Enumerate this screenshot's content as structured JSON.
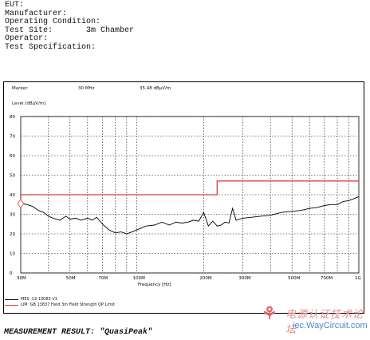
{
  "header": {
    "rows": [
      {
        "label": "EUT:",
        "value": ""
      },
      {
        "label": "Manufacturer:",
        "value": ""
      },
      {
        "label": "Operating Condition:",
        "value": ""
      },
      {
        "label": "Test Site:",
        "value": "3m Chamber"
      },
      {
        "label": "Operator:",
        "value": ""
      },
      {
        "label": "Test Specification:",
        "value": ""
      }
    ]
  },
  "marker": {
    "label": "Marker:",
    "freq": "30 MHz",
    "level": "35.48 dBµV/m"
  },
  "result": "MEASUREMENT RESULT: \"QuasiPeak\"",
  "watermark": {
    "cn": "电源认证技术论坛",
    "url": "iec.WayCircuit.com"
  },
  "legend": [
    {
      "code": "MES",
      "text": "13-13083 V1",
      "color": "#000000"
    },
    {
      "code": "LIM",
      "text": "GB 13837 Field 3m    Field Strength QP Limit",
      "color": "#d9413b"
    }
  ],
  "chart_data": {
    "type": "line",
    "ylabel": "Level [dBµV/m]",
    "xlabel": "Frequency [Hz]",
    "ylim": [
      0,
      80
    ],
    "xlim_mhz": [
      30,
      1000
    ],
    "x_scale": "log",
    "yticks": [
      0,
      10,
      20,
      30,
      40,
      50,
      60,
      70,
      80
    ],
    "xtick_labels": [
      "30M",
      "50M",
      "70M",
      "100M",
      "200M",
      "300M",
      "500M",
      "700M",
      "1G"
    ],
    "xtick_values_mhz": [
      30,
      50,
      70,
      100,
      200,
      300,
      500,
      700,
      1000
    ],
    "grid": true,
    "series": [
      {
        "name": "MES 13-13083 V1",
        "color": "#000000",
        "x_mhz": [
          30,
          32,
          34,
          36,
          38,
          40,
          42,
          45,
          48,
          50,
          53,
          56,
          60,
          63,
          66,
          70,
          75,
          80,
          85,
          90,
          95,
          100,
          110,
          120,
          130,
          140,
          150,
          160,
          170,
          180,
          190,
          200,
          210,
          220,
          230,
          240,
          250,
          260,
          270,
          280,
          300,
          330,
          360,
          400,
          450,
          500,
          550,
          600,
          650,
          700,
          750,
          800,
          850,
          900,
          950,
          1000
        ],
        "values": [
          35.5,
          35,
          34,
          32,
          31,
          29,
          28,
          27,
          29,
          27.5,
          28,
          27,
          28,
          27,
          28.5,
          25,
          22,
          20.5,
          21,
          20,
          21,
          22,
          24,
          24.5,
          26,
          24.5,
          26,
          25.5,
          26,
          27,
          26.5,
          31,
          24,
          26.5,
          24,
          24.5,
          26,
          25.5,
          33,
          27,
          28,
          28.5,
          29,
          29.5,
          31,
          31.5,
          32,
          33,
          33.5,
          34.5,
          35,
          35,
          36.5,
          37,
          38,
          39
        ]
      },
      {
        "name": "LIM GB 13837 Field 3m",
        "color": "#d9413b",
        "x_mhz": [
          30,
          230,
          230,
          1000
        ],
        "values": [
          40,
          40,
          47,
          47
        ]
      }
    ],
    "marker_point": {
      "x_mhz": 30,
      "value": 35.48
    }
  }
}
